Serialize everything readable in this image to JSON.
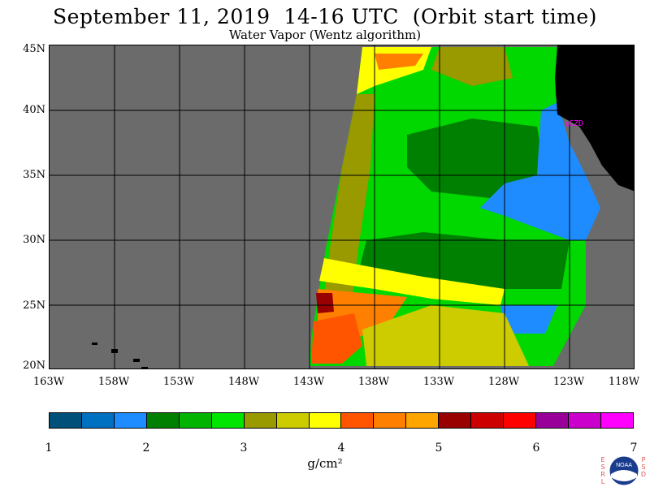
{
  "title": "September 11, 2019  14-16 UTC  (Orbit start time)",
  "subtitle": "Water Vapor (Wentz algorithm)",
  "lat_labels": [
    "45N",
    "40N",
    "35N",
    "30N",
    "25N",
    "20N"
  ],
  "lon_labels": [
    "163W",
    "158W",
    "153W",
    "148W",
    "143W",
    "138W",
    "133W",
    "128W",
    "123W",
    "118W"
  ],
  "map_extent": {
    "lon_min": -163,
    "lon_max": -118,
    "lat_min": 20,
    "lat_max": 45
  },
  "city_label": "CZD",
  "colorbar": {
    "colors": [
      "#00507a",
      "#0070c0",
      "#1e8cff",
      "#008000",
      "#00b400",
      "#00e600",
      "#999900",
      "#cccc00",
      "#ffff00",
      "#ff5500",
      "#ff8000",
      "#ffa500",
      "#990000",
      "#cc0000",
      "#ff0000",
      "#990099",
      "#cc00cc",
      "#ff00ff"
    ],
    "ticks": [
      "1",
      "2",
      "3",
      "4",
      "5",
      "6",
      "7"
    ],
    "unit": "g/cm²"
  },
  "colors": {
    "no_data": "#6b6b6b",
    "land": "#000000",
    "grid": "#000000"
  },
  "logo": {
    "left_text": "ESRL",
    "right_text": "PSD",
    "center_text": "NOAA"
  }
}
